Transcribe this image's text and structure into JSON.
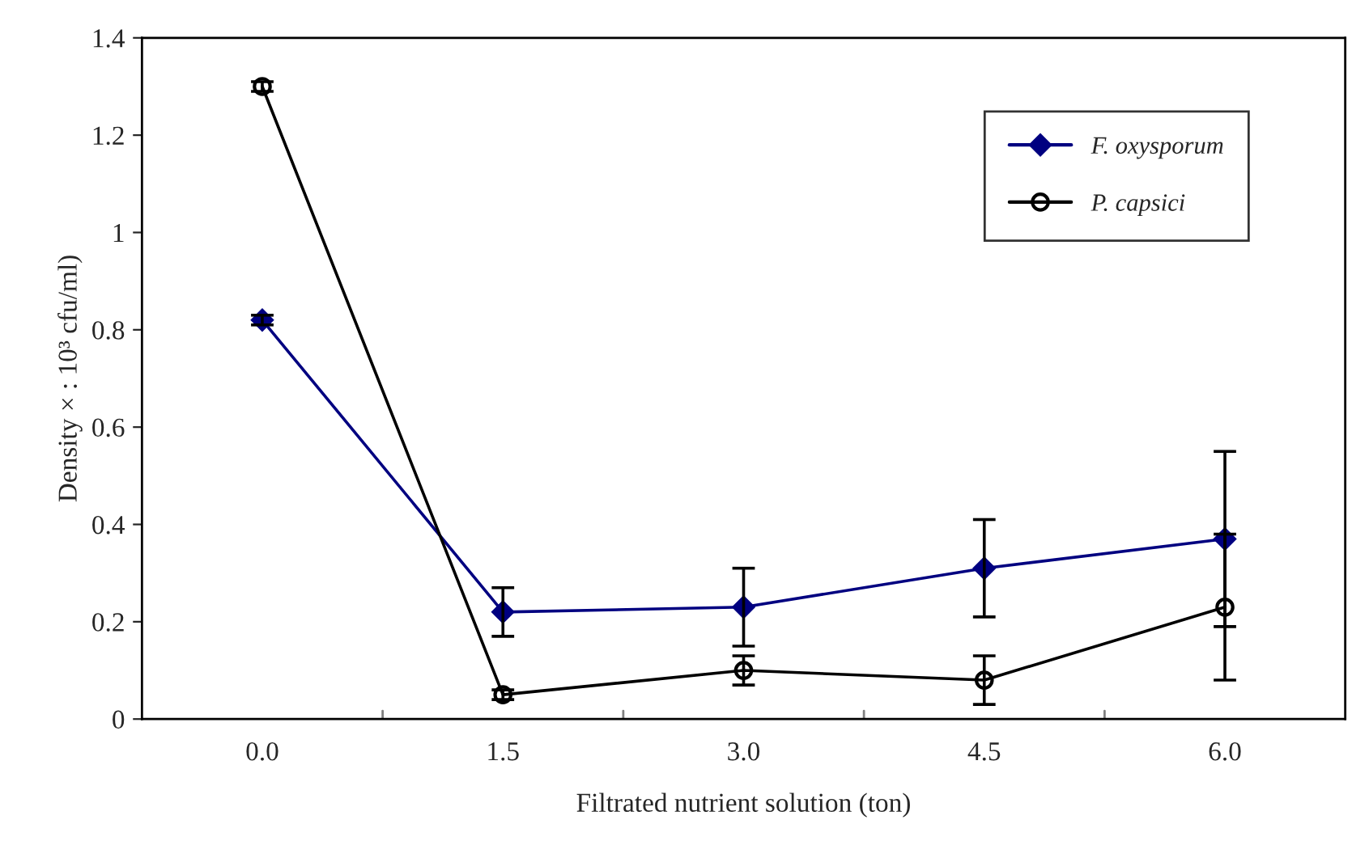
{
  "chart_data": {
    "type": "line",
    "xlabel": "Filtrated nutrient solution (ton)",
    "ylabel": "Density × : 10³ cfu/ml)",
    "categories": [
      "0.0",
      "1.5",
      "3.0",
      "4.5",
      "6.0"
    ],
    "series": [
      {
        "name": "F. oxysporum",
        "color": "#000080",
        "marker": "diamond",
        "values": [
          0.82,
          0.22,
          0.23,
          0.31,
          0.37
        ],
        "errors": [
          0.01,
          0.05,
          0.08,
          0.1,
          0.18
        ]
      },
      {
        "name": "P. capsici",
        "color": "#000000",
        "marker": "circle",
        "values": [
          1.3,
          0.05,
          0.1,
          0.08,
          0.23
        ],
        "errors": [
          0.01,
          0.01,
          0.03,
          0.05,
          0.15
        ]
      }
    ],
    "ylim": [
      0,
      1.4
    ],
    "yticks": [
      0,
      {
        "value": 0.2,
        "label": "0.2"
      },
      {
        "value": 0.4,
        "label": "0.4"
      },
      {
        "value": 0.6,
        "label": "0.6"
      },
      {
        "value": 0.8,
        "label": "0.8"
      },
      1,
      {
        "value": 1.2,
        "label": "1.2"
      },
      {
        "value": 1.4,
        "label": "1.4"
      }
    ],
    "grid": false,
    "legend": "top right",
    "line_style": "solid"
  }
}
